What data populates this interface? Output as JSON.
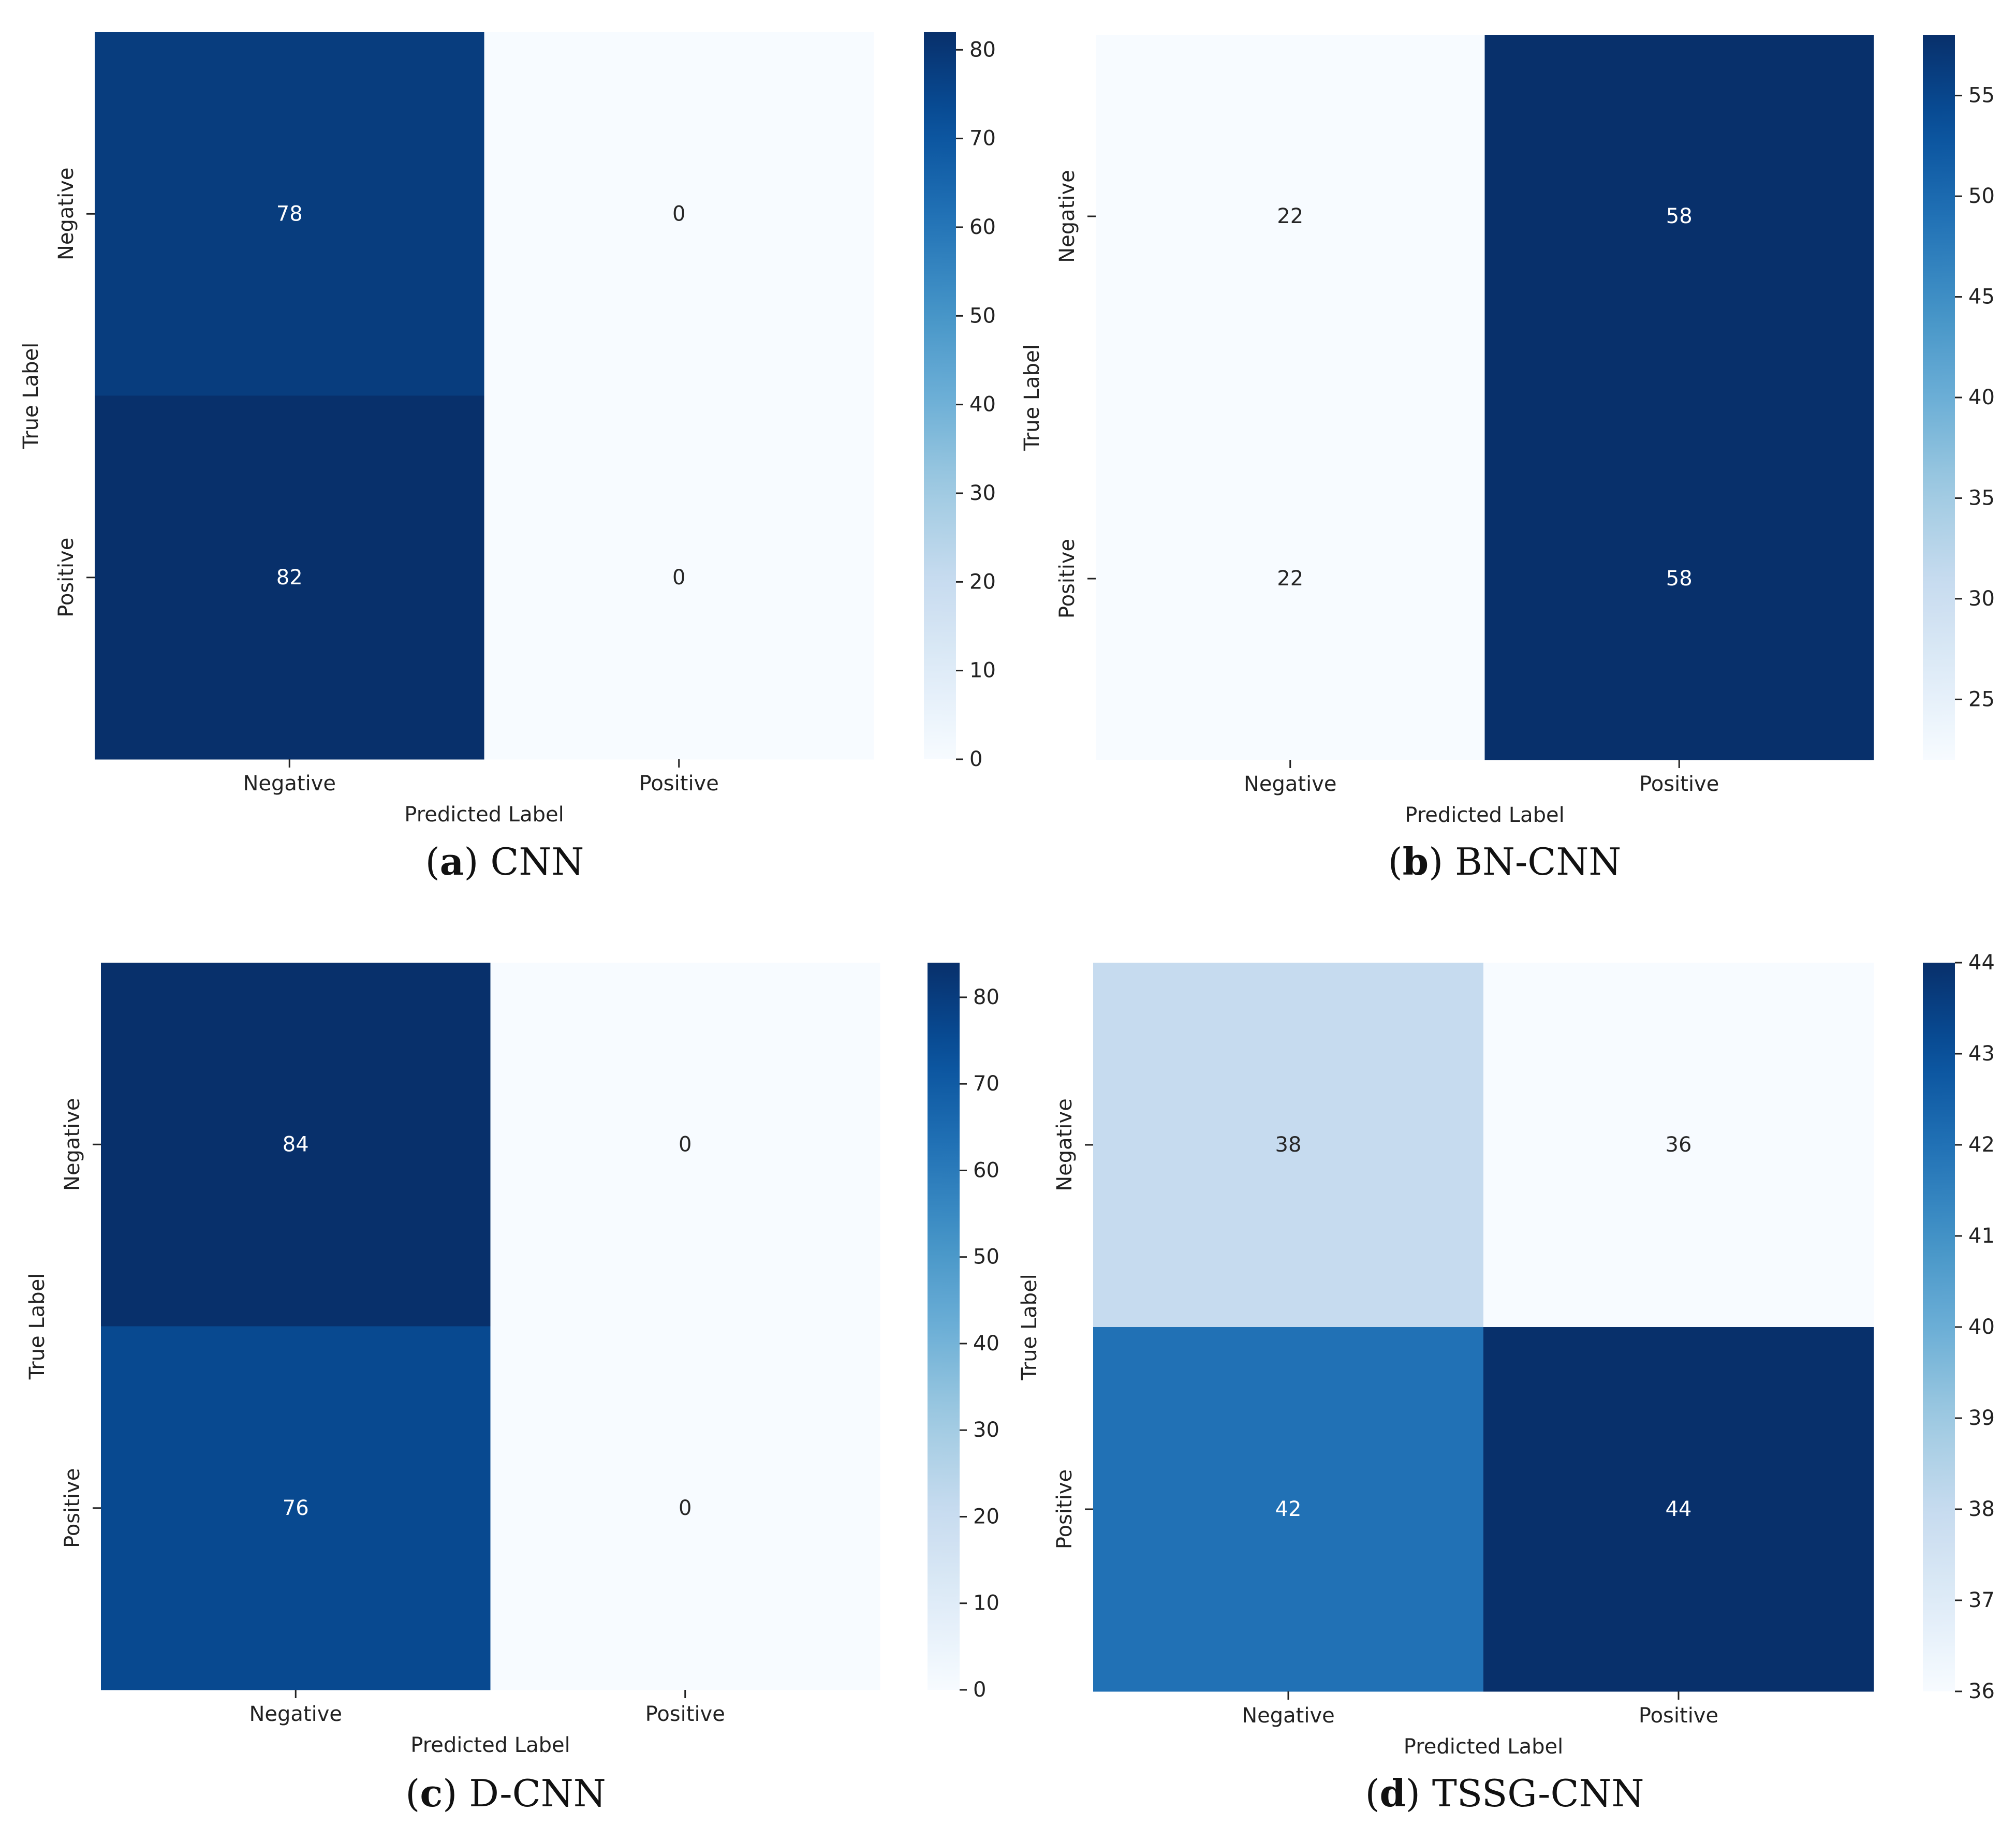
{
  "chart_data": [
    {
      "type": "heatmap",
      "caption_letter": "a",
      "caption_name": "CNN",
      "xlabel": "Predicted Label",
      "ylabel": "True Label",
      "x_categories": [
        "Negative",
        "Positive"
      ],
      "y_categories": [
        "Negative",
        "Positive"
      ],
      "values": [
        [
          78,
          0
        ],
        [
          82,
          0
        ]
      ],
      "colorbar_range": [
        0,
        82
      ],
      "colorbar_ticks": [
        0,
        10,
        20,
        30,
        40,
        50,
        60,
        70,
        80
      ],
      "colormap": "Blues"
    },
    {
      "type": "heatmap",
      "caption_letter": "b",
      "caption_name": "BN-CNN",
      "xlabel": "Predicted Label",
      "ylabel": "True Label",
      "x_categories": [
        "Negative",
        "Positive"
      ],
      "y_categories": [
        "Negative",
        "Positive"
      ],
      "values": [
        [
          22,
          58
        ],
        [
          22,
          58
        ]
      ],
      "colorbar_range": [
        22,
        58
      ],
      "colorbar_ticks": [
        25,
        30,
        35,
        40,
        45,
        50,
        55
      ],
      "colormap": "Blues"
    },
    {
      "type": "heatmap",
      "caption_letter": "c",
      "caption_name": "D-CNN",
      "xlabel": "Predicted Label",
      "ylabel": "True Label",
      "x_categories": [
        "Negative",
        "Positive"
      ],
      "y_categories": [
        "Negative",
        "Positive"
      ],
      "values": [
        [
          84,
          0
        ],
        [
          76,
          0
        ]
      ],
      "colorbar_range": [
        0,
        84
      ],
      "colorbar_ticks": [
        0,
        10,
        20,
        30,
        40,
        50,
        60,
        70,
        80
      ],
      "colormap": "Blues"
    },
    {
      "type": "heatmap",
      "caption_letter": "d",
      "caption_name": "TSSG-CNN",
      "xlabel": "Predicted Label",
      "ylabel": "True Label",
      "x_categories": [
        "Negative",
        "Positive"
      ],
      "y_categories": [
        "Negative",
        "Positive"
      ],
      "values": [
        [
          38,
          36
        ],
        [
          42,
          44
        ]
      ],
      "colorbar_range": [
        36,
        44
      ],
      "colorbar_ticks": [
        36,
        37,
        38,
        39,
        40,
        41,
        42,
        43,
        44
      ],
      "colormap": "Blues"
    }
  ]
}
